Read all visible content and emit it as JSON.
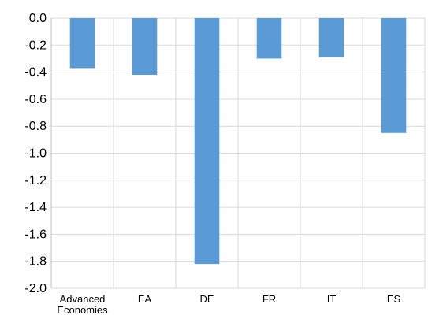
{
  "chart_data": {
    "type": "bar",
    "title": "",
    "xlabel": "",
    "ylabel": "",
    "categories": [
      "Advanced Economies",
      "EA",
      "DE",
      "FR",
      "IT",
      "ES"
    ],
    "category_lines": [
      [
        "Advanced",
        "Economies"
      ],
      [
        "EA"
      ],
      [
        "DE"
      ],
      [
        "FR"
      ],
      [
        "IT"
      ],
      [
        "ES"
      ]
    ],
    "values": [
      -0.37,
      -0.42,
      -1.82,
      -0.3,
      -0.29,
      -0.85
    ],
    "ylim": [
      -2.0,
      0.0
    ],
    "yticks": [
      0.0,
      -0.2,
      -0.4,
      -0.6,
      -0.8,
      -1.0,
      -1.2,
      -1.4,
      -1.6,
      -1.8,
      -2.0
    ],
    "ytick_labels": [
      "0.0",
      "-0.2",
      "-0.4",
      "-0.6",
      "-0.8",
      "-1.0",
      "-1.2",
      "-1.4",
      "-1.6",
      "-1.8",
      "-2.0"
    ],
    "grid": true,
    "legend": "none",
    "bar_color": "#5B9BD5",
    "grid_color": "#D9D9D9"
  }
}
